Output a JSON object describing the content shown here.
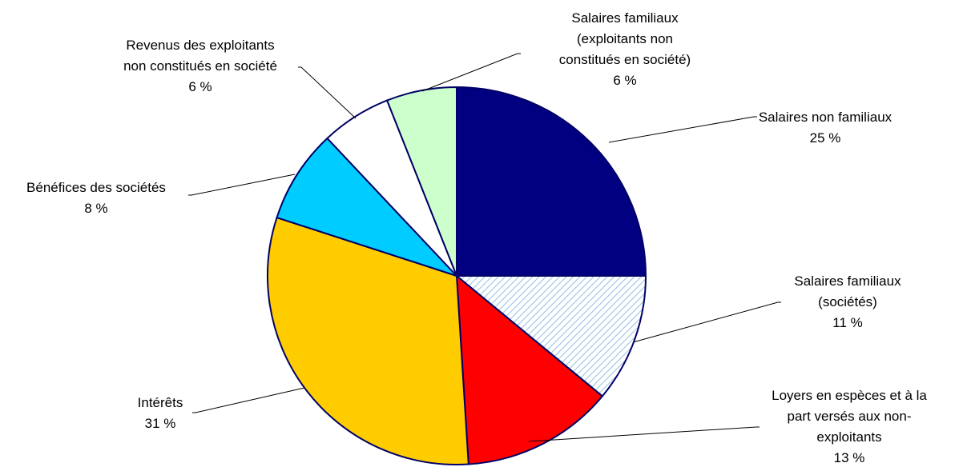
{
  "chart_data": {
    "type": "pie",
    "start_angle_deg": 0,
    "direction": "clockwise",
    "slices": [
      {
        "lines": [
          "Salaires non familiaux"
        ],
        "value": 25,
        "value_label": "25 %",
        "color": "#000080",
        "pattern": "solid"
      },
      {
        "lines": [
          "Salaires familiaux",
          "(sociétés)"
        ],
        "value": 11,
        "value_label": "11 %",
        "color": "#ffffff",
        "pattern": "diagonal-hatch",
        "hatch_color": "#9ec3e6"
      },
      {
        "lines": [
          "Loyers en espèces et à la",
          "part versés aux non-",
          "exploitants"
        ],
        "value": 13,
        "value_label": "13 %",
        "color": "#ff0000",
        "pattern": "solid"
      },
      {
        "lines": [
          "Intérêts"
        ],
        "value": 31,
        "value_label": "31 %",
        "color": "#ffcc00",
        "pattern": "solid"
      },
      {
        "lines": [
          "Bénéfices des sociétés"
        ],
        "value": 8,
        "value_label": "8 %",
        "color": "#00ccff",
        "pattern": "solid"
      },
      {
        "lines": [
          "Revenus des exploitants",
          "non constitués en société"
        ],
        "value": 6,
        "value_label": "6 %",
        "color": "#ffffff",
        "pattern": "solid"
      },
      {
        "lines": [
          "Salaires familiaux",
          "(exploitants non",
          "constitués en société)"
        ],
        "value": 6,
        "value_label": "6 %",
        "color": "#ccffcc",
        "pattern": "solid"
      }
    ]
  }
}
